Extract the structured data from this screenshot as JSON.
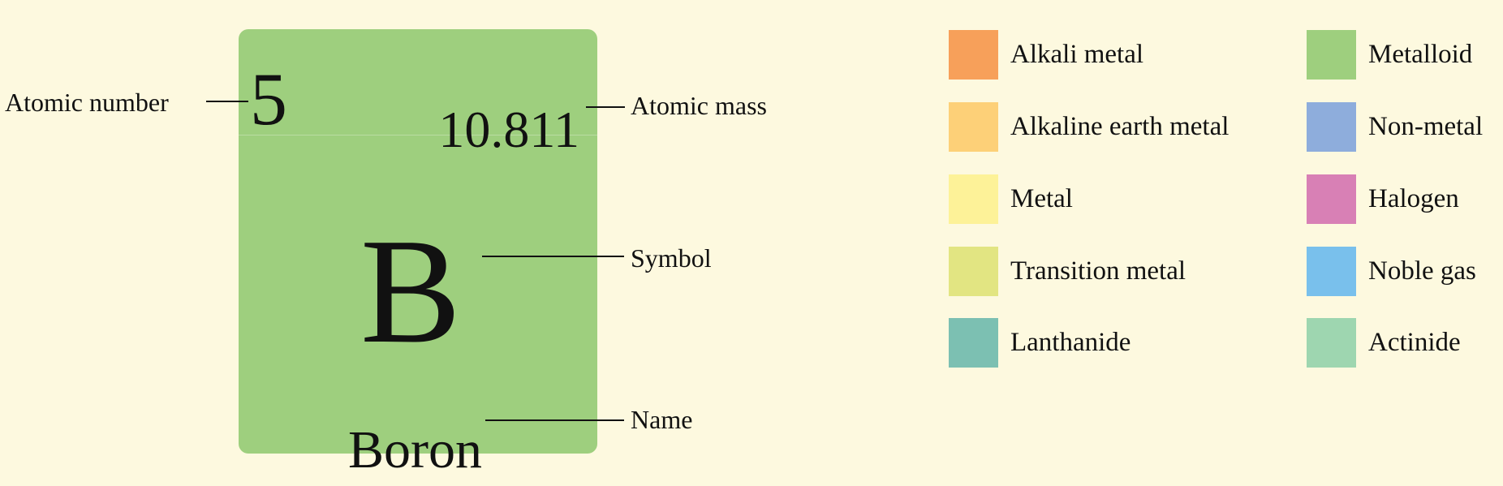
{
  "element": {
    "atomic_number": "5",
    "atomic_mass": "10.811",
    "symbol": "B",
    "name": "Boron",
    "category_color": "#9ecf7e"
  },
  "callouts": {
    "atomic_number": "Atomic number",
    "atomic_mass": "Atomic mass",
    "symbol": "Symbol",
    "name": "Name"
  },
  "legend": {
    "items": [
      {
        "label": "Alkali metal",
        "color": "#f7a05a"
      },
      {
        "label": "Alkaline earth metal",
        "color": "#fdd078"
      },
      {
        "label": "Metal",
        "color": "#fdf298"
      },
      {
        "label": "Transition metal",
        "color": "#e2e582"
      },
      {
        "label": "Lanthanide",
        "color": "#7cc0b2"
      },
      {
        "label": "Metalloid",
        "color": "#9ecf7e"
      },
      {
        "label": "Non-metal",
        "color": "#8eaddc"
      },
      {
        "label": "Halogen",
        "color": "#d880b5"
      },
      {
        "label": "Noble gas",
        "color": "#79c0ec"
      },
      {
        "label": "Actinide",
        "color": "#9ed6b0"
      }
    ]
  }
}
